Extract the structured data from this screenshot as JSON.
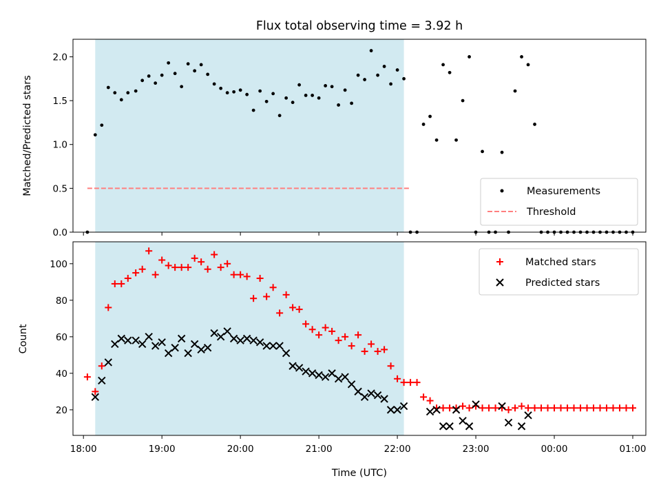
{
  "chart_data": [
    {
      "type": "scatter",
      "title": "Flux total observing time = 3.92 h",
      "ylabel": "Matched/Predicted stars",
      "xlabel": "",
      "xlim": [
        "17:52",
        "01:10"
      ],
      "ylim": [
        0,
        2.2
      ],
      "yticks": [
        0.0,
        0.5,
        1.0,
        1.5,
        2.0
      ],
      "ytick_labels": [
        "0.0",
        "0.5",
        "1.0",
        "1.5",
        "2.0"
      ],
      "shaded_interval": [
        "18:09",
        "22:05"
      ],
      "shade_color": "#add8e6",
      "legend_position": "lower right",
      "series": [
        {
          "name": "Measurements",
          "style": "dot",
          "color": "#000000",
          "x": [
            "18:03",
            "18:09",
            "18:14",
            "18:19",
            "18:24",
            "18:29",
            "18:34",
            "18:40",
            "18:45",
            "18:50",
            "18:55",
            "19:00",
            "19:05",
            "19:10",
            "19:15",
            "19:20",
            "19:25",
            "19:30",
            "19:35",
            "19:40",
            "19:45",
            "19:50",
            "19:55",
            "20:00",
            "20:05",
            "20:10",
            "20:15",
            "20:20",
            "20:25",
            "20:30",
            "20:35",
            "20:40",
            "20:45",
            "20:50",
            "20:55",
            "21:00",
            "21:05",
            "21:10",
            "21:15",
            "21:20",
            "21:25",
            "21:30",
            "21:35",
            "21:40",
            "21:45",
            "21:50",
            "21:55",
            "22:00",
            "22:05",
            "22:10",
            "22:15",
            "22:20",
            "22:25",
            "22:30",
            "22:35",
            "22:40",
            "22:45",
            "22:50",
            "22:55",
            "23:00",
            "23:05",
            "23:10",
            "23:15",
            "23:20",
            "23:25",
            "23:30",
            "23:35",
            "23:40",
            "23:45",
            "23:50",
            "23:55",
            "00:00",
            "00:05",
            "00:10",
            "00:15",
            "00:20",
            "00:25",
            "00:30",
            "00:35",
            "00:40",
            "00:45",
            "00:50",
            "00:55",
            "01:00"
          ],
          "y": [
            0,
            1.11,
            1.22,
            1.65,
            1.59,
            1.51,
            1.59,
            1.61,
            1.73,
            1.78,
            1.7,
            1.79,
            1.93,
            1.81,
            1.66,
            1.92,
            1.84,
            1.91,
            1.8,
            1.69,
            1.64,
            1.59,
            1.6,
            1.62,
            1.57,
            1.39,
            1.61,
            1.49,
            1.58,
            1.33,
            1.53,
            1.48,
            1.68,
            1.56,
            1.56,
            1.53,
            1.67,
            1.66,
            1.45,
            1.62,
            1.47,
            1.79,
            1.74,
            2.07,
            1.79,
            1.89,
            1.69,
            1.85,
            1.75,
            0,
            0,
            1.23,
            1.32,
            1.05,
            1.91,
            1.82,
            1.05,
            1.5,
            2.0,
            0,
            0.92,
            0,
            0,
            0.91,
            0,
            1.61,
            2.0,
            1.91,
            1.23,
            0,
            0,
            0,
            0,
            0,
            0,
            0,
            0,
            0,
            0,
            0,
            0,
            0,
            0,
            0
          ]
        },
        {
          "name": "Threshold",
          "style": "dashed-line",
          "color": "#ff7f7f",
          "x": [
            "18:03",
            "22:10"
          ],
          "y": [
            0.5,
            0.5
          ]
        }
      ]
    },
    {
      "type": "scatter",
      "title": "",
      "ylabel": "Count",
      "xlabel": "Time (UTC)",
      "xlim": [
        "17:52",
        "01:10"
      ],
      "ylim": [
        6,
        112
      ],
      "yticks": [
        20,
        40,
        60,
        80,
        100
      ],
      "xticks": [
        "18:00",
        "19:00",
        "20:00",
        "21:00",
        "22:00",
        "23:00",
        "00:00",
        "01:00"
      ],
      "shaded_interval": [
        "18:09",
        "22:05"
      ],
      "shade_color": "#add8e6",
      "legend_position": "upper right",
      "series": [
        {
          "name": "Matched stars",
          "style": "plus",
          "color": "#ff0000",
          "x": [
            "18:03",
            "18:09",
            "18:14",
            "18:19",
            "18:24",
            "18:29",
            "18:34",
            "18:40",
            "18:45",
            "18:50",
            "18:55",
            "19:00",
            "19:05",
            "19:10",
            "19:15",
            "19:20",
            "19:25",
            "19:30",
            "19:35",
            "19:40",
            "19:45",
            "19:50",
            "19:55",
            "20:00",
            "20:05",
            "20:10",
            "20:15",
            "20:20",
            "20:25",
            "20:30",
            "20:35",
            "20:40",
            "20:45",
            "20:50",
            "20:55",
            "21:00",
            "21:05",
            "21:10",
            "21:15",
            "21:20",
            "21:25",
            "21:30",
            "21:35",
            "21:40",
            "21:45",
            "21:50",
            "21:55",
            "22:00",
            "22:05",
            "22:10",
            "22:15",
            "22:20",
            "22:25",
            "22:30",
            "22:35",
            "22:40",
            "22:45",
            "22:50",
            "22:55",
            "23:00",
            "23:05",
            "23:10",
            "23:15",
            "23:20",
            "23:25",
            "23:30",
            "23:35",
            "23:40",
            "23:45",
            "23:50",
            "23:55",
            "00:00",
            "00:05",
            "00:10",
            "00:15",
            "00:20",
            "00:25",
            "00:30",
            "00:35",
            "00:40",
            "00:45",
            "00:50",
            "00:55",
            "01:00"
          ],
          "y": [
            38,
            30,
            44,
            76,
            89,
            89,
            92,
            95,
            97,
            107,
            94,
            102,
            99,
            98,
            98,
            98,
            103,
            101,
            97,
            105,
            98,
            100,
            94,
            94,
            93,
            81,
            92,
            82,
            87,
            73,
            83,
            76,
            75,
            67,
            64,
            61,
            65,
            63,
            58,
            60,
            55,
            61,
            52,
            56,
            52,
            53,
            44,
            37,
            35,
            35,
            35,
            27,
            25,
            21,
            21,
            21,
            21,
            22,
            21,
            22,
            21,
            21,
            21,
            21,
            20,
            21,
            22,
            21,
            21,
            21,
            21,
            21,
            21,
            21,
            21,
            21,
            21,
            21,
            21,
            21,
            21,
            21,
            21,
            21
          ]
        },
        {
          "name": "Predicted stars",
          "style": "x",
          "color": "#000000",
          "x": [
            "18:09",
            "18:14",
            "18:19",
            "18:24",
            "18:29",
            "18:34",
            "18:40",
            "18:45",
            "18:50",
            "18:55",
            "19:00",
            "19:05",
            "19:10",
            "19:15",
            "19:20",
            "19:25",
            "19:30",
            "19:35",
            "19:40",
            "19:45",
            "19:50",
            "19:55",
            "20:00",
            "20:05",
            "20:10",
            "20:15",
            "20:20",
            "20:25",
            "20:30",
            "20:35",
            "20:40",
            "20:45",
            "20:50",
            "20:55",
            "21:00",
            "21:05",
            "21:10",
            "21:15",
            "21:20",
            "21:25",
            "21:30",
            "21:35",
            "21:40",
            "21:45",
            "21:50",
            "21:55",
            "22:00",
            "22:05",
            "22:25",
            "22:30",
            "22:35",
            "22:40",
            "22:45",
            "22:50",
            "22:55",
            "23:00",
            "23:20",
            "23:25",
            "23:35",
            "23:40"
          ],
          "y": [
            27,
            36,
            46,
            56,
            59,
            58,
            58,
            56,
            60,
            55,
            57,
            51,
            54,
            59,
            51,
            56,
            53,
            54,
            62,
            60,
            63,
            59,
            58,
            59,
            58,
            57,
            55,
            55,
            55,
            51,
            44,
            43,
            41,
            40,
            39,
            38,
            40,
            37,
            38,
            34,
            30,
            27,
            29,
            28,
            26,
            20,
            20,
            22,
            19,
            20,
            11,
            11,
            20,
            14,
            11,
            23,
            22,
            13,
            11,
            17
          ]
        }
      ]
    }
  ]
}
